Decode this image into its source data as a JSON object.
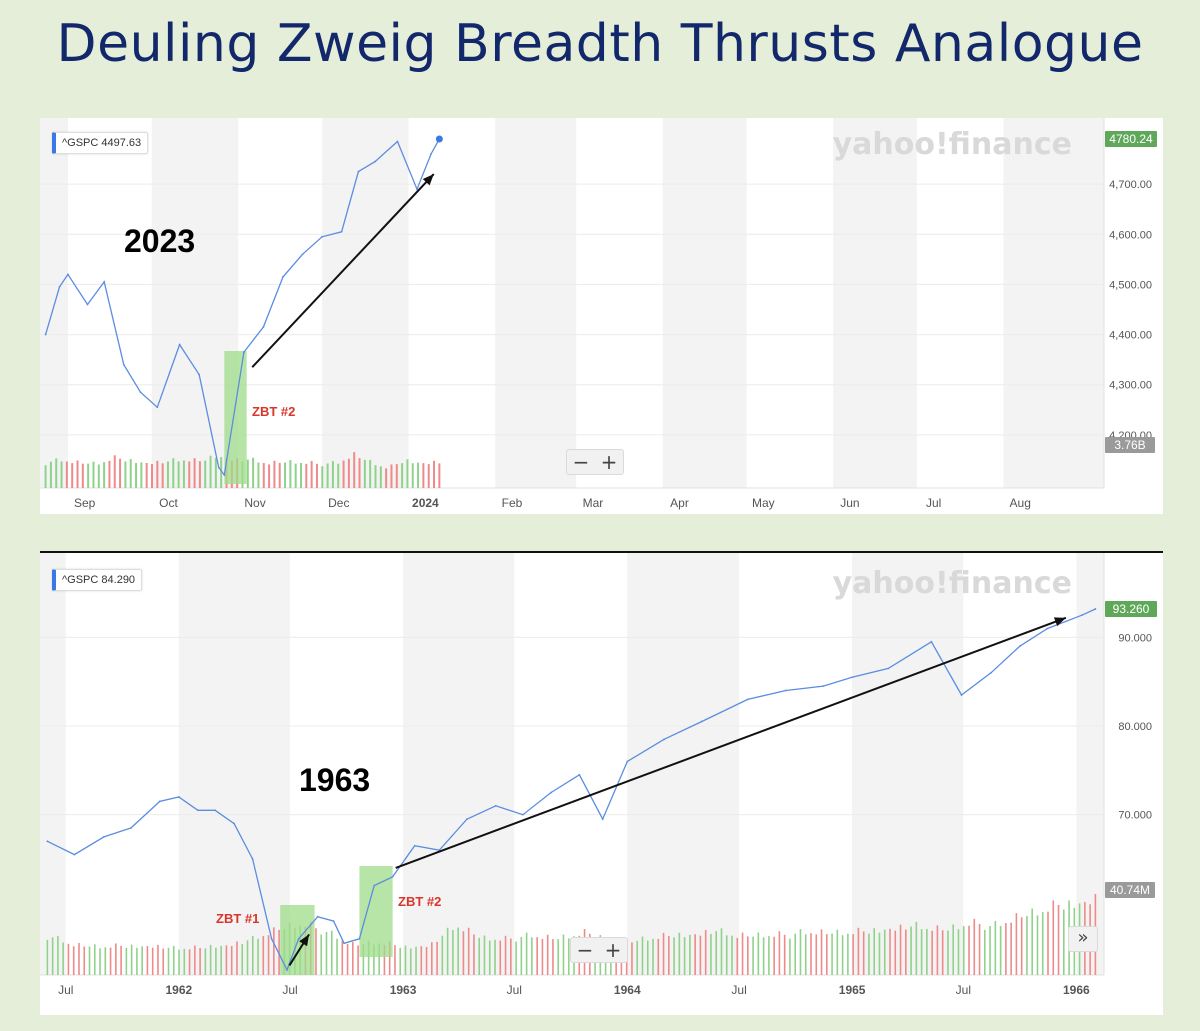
{
  "title": "Deuling Zweig Breadth Thrusts Analogue",
  "colors": {
    "line": "#5b8de0",
    "volume_up": "#8fd28a",
    "volume_down": "#ee8a8a",
    "highlight": "#9fdc8a",
    "annotation_red": "#d9352a",
    "last_price_badge": "#5fa85a",
    "volume_badge": "#9a9a9a",
    "title": "#12286b"
  },
  "chart_data": [
    {
      "type": "line",
      "title": "2023",
      "series": [
        {
          "name": "^GSPC",
          "x": [
            "2023-08-24",
            "2023-08-29",
            "2023-09-01",
            "2023-09-08",
            "2023-09-14",
            "2023-09-21",
            "2023-09-27",
            "2023-10-03",
            "2023-10-11",
            "2023-10-18",
            "2023-10-25",
            "2023-10-27",
            "2023-11-03",
            "2023-11-10",
            "2023-11-17",
            "2023-11-24",
            "2023-12-01",
            "2023-12-08",
            "2023-12-14",
            "2023-12-20",
            "2023-12-28",
            "2024-01-04",
            "2024-01-09",
            "2024-01-12"
          ],
          "values": [
            4400,
            4495,
            4520,
            4460,
            4505,
            4340,
            4285,
            4255,
            4380,
            4320,
            4135,
            4120,
            4365,
            4415,
            4515,
            4560,
            4595,
            4605,
            4725,
            4745,
            4785,
            4690,
            4760,
            4790
          ]
        }
      ],
      "volume_values": [
        3.5,
        3.9,
        3.6,
        3.4,
        4.2,
        3.9,
        3.6,
        3.7,
        4.0,
        3.8,
        4.6,
        4.1,
        3.9,
        3.5,
        3.7,
        3.6,
        3.3,
        3.4,
        4.8,
        3.6,
        2.8,
        3.9,
        3.6,
        3.7
      ],
      "x_ticks": [
        "Sep",
        "Oct",
        "Nov",
        "Dec",
        "2024",
        "Feb",
        "Mar",
        "Apr",
        "May",
        "Jun",
        "Jul",
        "Aug"
      ],
      "y_ticks": [
        "4,700.00",
        "4,600.00",
        "4,500.00",
        "4,400.00",
        "4,300.00",
        "4,200.00"
      ],
      "ylim": [
        4100,
        4800
      ],
      "ticker_label": "^GSPC",
      "ticker_value": "4497.63",
      "last_value_label": "4780.24",
      "volume_label": "3.76B",
      "watermark": "yahoo!finance",
      "annotations": [
        {
          "text": "ZBT #2",
          "start": "2023-10-27",
          "end": "2023-11-04"
        }
      ],
      "trend_arrow": {
        "from": [
          "2023-11-06",
          4335
        ],
        "to": [
          "2024-01-10",
          4720
        ]
      }
    },
    {
      "type": "line",
      "title": "1963",
      "series": [
        {
          "name": "^GSPC",
          "x": [
            "1961-06-01",
            "1961-07-15",
            "1961-09-01",
            "1961-10-15",
            "1961-12-01",
            "1962-01-01",
            "1962-02-01",
            "1962-03-01",
            "1962-04-01",
            "1962-05-01",
            "1962-06-01",
            "1962-06-26",
            "1962-07-15",
            "1962-08-15",
            "1962-09-10",
            "1962-09-27",
            "1962-10-22",
            "1962-11-15",
            "1962-12-15",
            "1963-01-20",
            "1963-03-01",
            "1963-04-15",
            "1963-06-01",
            "1963-07-15",
            "1963-08-30",
            "1963-10-15",
            "1963-11-22",
            "1964-01-01",
            "1964-03-01",
            "1964-05-01",
            "1964-07-15",
            "1964-09-15",
            "1964-11-15",
            "1965-01-01",
            "1965-03-01",
            "1965-05-10",
            "1965-06-28",
            "1965-08-15",
            "1965-10-01",
            "1965-11-15",
            "1966-01-10",
            "1966-02-01"
          ],
          "values": [
            67,
            65.5,
            67.5,
            68.5,
            71.5,
            72,
            70.5,
            70.5,
            69,
            65,
            56,
            52.5,
            56,
            58.5,
            58,
            55.5,
            56,
            62,
            63,
            66.5,
            66,
            69.5,
            71,
            70,
            72.5,
            74.5,
            69.5,
            76,
            78.5,
            80.5,
            83,
            84,
            84.5,
            85.5,
            86.5,
            89.5,
            83.5,
            86,
            89,
            91,
            92.5,
            93.2
          ]
        }
      ],
      "volume_values": [
        4.5,
        3.6,
        3.3,
        3.4,
        3.5,
        3.1,
        3.2,
        3.6,
        4.1,
        5.4,
        6.0,
        4.8,
        3.6,
        3.8,
        3.3,
        3.6,
        5.8,
        4.4,
        4.1,
        4.6,
        4.3,
        4.9,
        4.3,
        4.0,
        4.5,
        4.8,
        5.2,
        4.6,
        4.7,
        4.6,
        5.1,
        4.9,
        5.1,
        5.6,
        5.7,
        5.3,
        6.0,
        5.6,
        6.9,
        7.6,
        8.5,
        9.0
      ],
      "x_ticks": [
        "Jul",
        "1962",
        "Jul",
        "1963",
        "Jul",
        "1964",
        "Jul",
        "1965",
        "Jul",
        "1966"
      ],
      "y_ticks": [
        "90.000",
        "80.000",
        "70.000"
      ],
      "ylim": [
        53.5,
        95
      ],
      "ticker_label": "^GSPC",
      "ticker_value": "84.290",
      "last_value_label": "93.260",
      "volume_label": "40.74M",
      "watermark": "yahoo!finance",
      "annotations": [
        {
          "text": "ZBT #1",
          "start": "1962-06-15",
          "end": "1962-08-10"
        },
        {
          "text": "ZBT #2",
          "start": "1962-10-22",
          "end": "1962-12-15"
        }
      ],
      "small_arrow": {
        "from": [
          "1962-06-30",
          53
        ],
        "to": [
          "1962-08-01",
          56.5
        ]
      },
      "trend_arrow": {
        "from": [
          "1962-12-20",
          64
        ],
        "to": [
          "1965-12-15",
          92.2
        ]
      }
    }
  ]
}
